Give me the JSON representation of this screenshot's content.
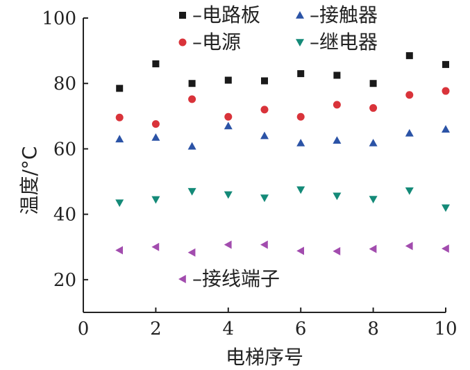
{
  "chart_data": {
    "type": "scatter",
    "title": "",
    "xlabel": "电梯序号",
    "ylabel": "温度/°C",
    "xlim": [
      0,
      10
    ],
    "ylim": [
      10,
      100
    ],
    "xticks": [
      "0",
      "2",
      "4",
      "6",
      "8",
      "10"
    ],
    "yticks": [
      "20",
      "40",
      "60",
      "80",
      "100"
    ],
    "grid": false,
    "legend_placement": "top-right and bottom-left",
    "x": [
      1,
      2,
      3,
      4,
      5,
      6,
      7,
      8,
      9,
      10
    ],
    "series": [
      {
        "name": "电路板",
        "legend_label": "–电路板",
        "marker": "square",
        "color": "#1a1a1a",
        "values": [
          78.5,
          86,
          80,
          81,
          80.8,
          83,
          82.5,
          80,
          88.5,
          85.8
        ]
      },
      {
        "name": "接触器",
        "legend_label": "–接触器",
        "marker": "triangle-up",
        "color": "#2b53a6",
        "values": [
          63,
          63.5,
          60.8,
          67,
          64,
          61.8,
          62.6,
          61.8,
          64.8,
          66
        ]
      },
      {
        "name": "电源",
        "legend_label": "–电源",
        "marker": "circle",
        "color": "#d9333a",
        "values": [
          69.6,
          67.6,
          75.2,
          69.8,
          72,
          69.8,
          73.5,
          72.5,
          76.5,
          77.7
        ]
      },
      {
        "name": "继电器",
        "legend_label": "–继电器",
        "marker": "triangle-down",
        "color": "#148a78",
        "values": [
          43.5,
          44.5,
          47,
          46,
          45,
          47.5,
          45.6,
          44.6,
          47.2,
          42
        ]
      },
      {
        "name": "接线端子",
        "legend_label": "–接线端子",
        "marker": "triangle-left",
        "color": "#a24cae",
        "values": [
          29,
          30,
          28.3,
          30.7,
          30.7,
          28.8,
          28.7,
          29.4,
          30.3,
          29.5
        ]
      }
    ]
  }
}
